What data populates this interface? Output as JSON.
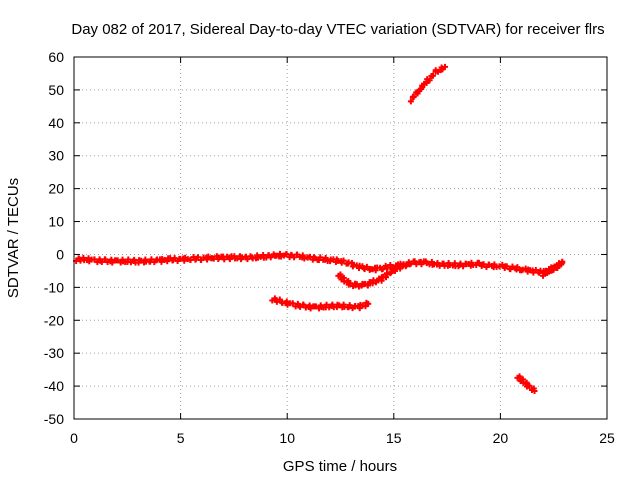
{
  "chart_data": {
    "type": "scatter",
    "title": "Day 082 of 2017, Sidereal Day-to-day VTEC variation (SDTVAR) for receiver flrs",
    "xlabel": "GPS time / hours",
    "ylabel": "SDTVAR / TECUs",
    "xlim": [
      0,
      25
    ],
    "ylim": [
      -50,
      60
    ],
    "xticks": [
      0,
      5,
      10,
      15,
      20,
      25
    ],
    "yticks": [
      -50,
      -40,
      -30,
      -20,
      -10,
      0,
      10,
      20,
      30,
      40,
      50,
      60
    ],
    "grid": true,
    "legend": "none",
    "marker_color": "#ff0000",
    "series": [
      {
        "segments": [
          [
            [
              0.1,
              -1.5
            ],
            [
              0.5,
              -1.5
            ],
            [
              1,
              -1.8
            ],
            [
              1.5,
              -2
            ],
            [
              2,
              -2
            ],
            [
              2.5,
              -2
            ],
            [
              3,
              -2
            ],
            [
              3.5,
              -2
            ],
            [
              4,
              -1.8
            ],
            [
              4.5,
              -1.6
            ],
            [
              5,
              -1.5
            ],
            [
              5.5,
              -1.3
            ],
            [
              6,
              -1.2
            ],
            [
              6.5,
              -1
            ],
            [
              7,
              -1
            ],
            [
              7.5,
              -1
            ],
            [
              8,
              -1
            ],
            [
              8.5,
              -0.8
            ],
            [
              9,
              -0.5
            ],
            [
              9.5,
              -0.3
            ],
            [
              10,
              -0.3
            ],
            [
              10.5,
              -0.5
            ],
            [
              11,
              -1
            ],
            [
              11.5,
              -1.3
            ],
            [
              12,
              -1.6
            ],
            [
              12.5,
              -2
            ],
            [
              13,
              -3
            ],
            [
              13.5,
              -4
            ],
            [
              14,
              -4.5
            ],
            [
              14.5,
              -4
            ],
            [
              15,
              -3.5
            ],
            [
              15.5,
              -3
            ],
            [
              16,
              -2.5
            ],
            [
              16.5,
              -2.5
            ],
            [
              17,
              -3
            ],
            [
              17.5,
              -3
            ],
            [
              18,
              -3.2
            ],
            [
              18.5,
              -3
            ],
            [
              19,
              -3
            ],
            [
              19.5,
              -3.5
            ],
            [
              20,
              -3.5
            ],
            [
              20.5,
              -4
            ],
            [
              21,
              -4.5
            ],
            [
              21.5,
              -5
            ],
            [
              22,
              -5.5
            ],
            [
              22.5,
              -4
            ],
            [
              22.9,
              -2.5
            ]
          ],
          [
            [
              12.4,
              -6
            ],
            [
              12.7,
              -8
            ],
            [
              13,
              -9
            ],
            [
              13.3,
              -9.5
            ],
            [
              13.6,
              -9.3
            ],
            [
              14,
              -8.5
            ],
            [
              14.4,
              -7.5
            ],
            [
              14.8,
              -5.5
            ],
            [
              15.2,
              -4
            ],
            [
              15.6,
              -3
            ]
          ],
          [
            [
              9.3,
              -13.5
            ],
            [
              9.8,
              -14.5
            ],
            [
              10.3,
              -15.2
            ],
            [
              10.8,
              -15.8
            ],
            [
              11.3,
              -16
            ],
            [
              11.8,
              -15.8
            ],
            [
              12.3,
              -15.5
            ],
            [
              12.8,
              -15.8
            ],
            [
              13.3,
              -16
            ],
            [
              13.8,
              -15
            ]
          ],
          [
            [
              15.8,
              47
            ],
            [
              16.2,
              50
            ],
            [
              16.6,
              53
            ],
            [
              17,
              55.5
            ],
            [
              17.4,
              57
            ]
          ],
          [
            [
              20.8,
              -37
            ],
            [
              21.1,
              -38.8
            ],
            [
              21.4,
              -40.3
            ],
            [
              21.6,
              -41.5
            ]
          ],
          [
            [
              22.0,
              -6
            ],
            [
              22.3,
              -5
            ],
            [
              22.6,
              -4
            ],
            [
              22.9,
              -2.2
            ]
          ]
        ]
      }
    ]
  }
}
